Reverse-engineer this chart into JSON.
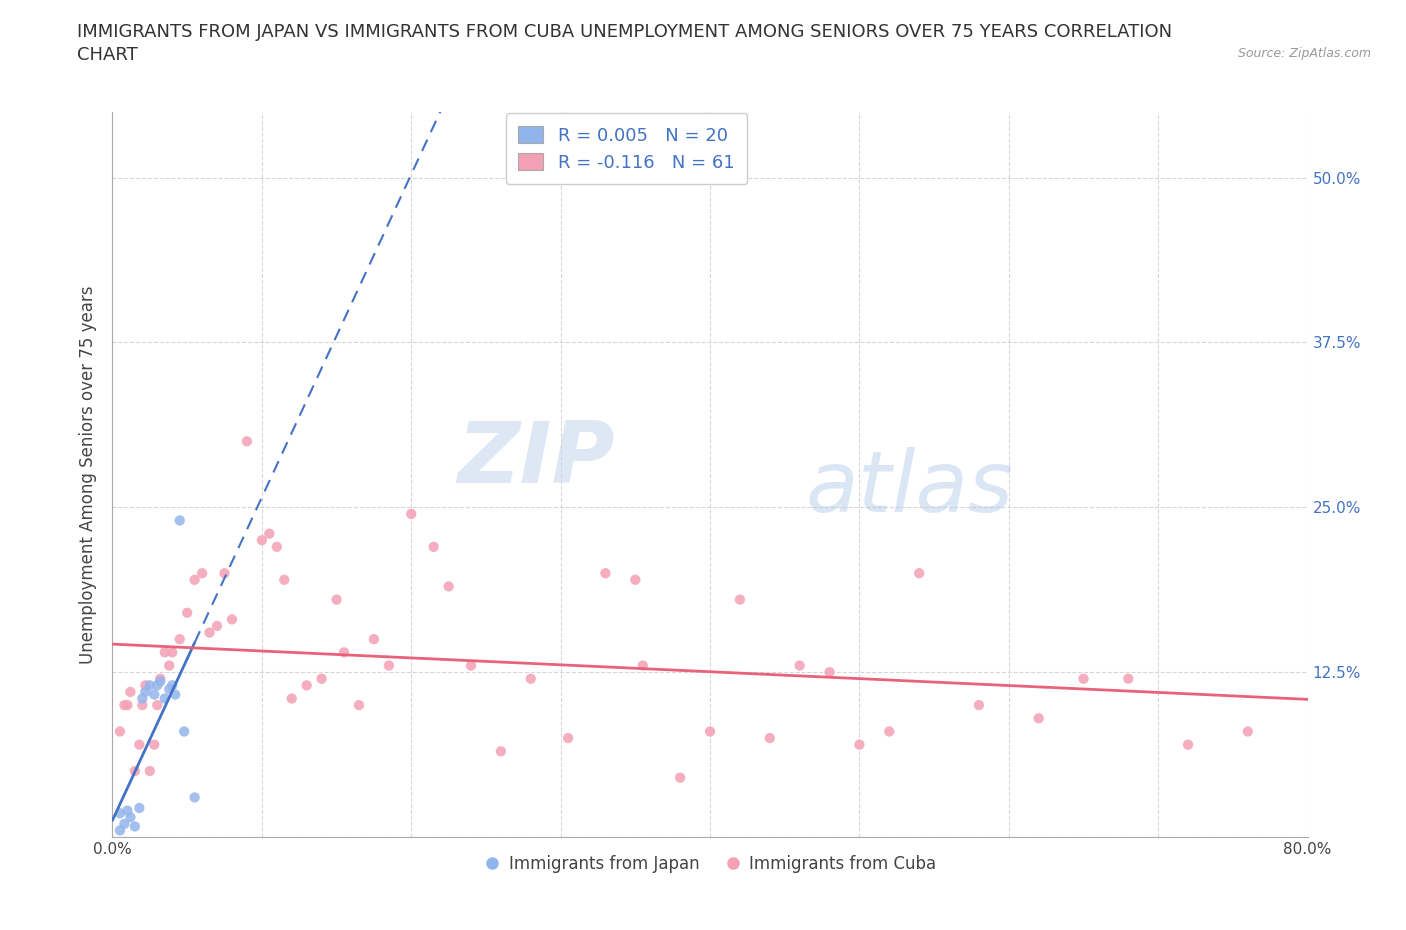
{
  "title_line1": "IMMIGRANTS FROM JAPAN VS IMMIGRANTS FROM CUBA UNEMPLOYMENT AMONG SENIORS OVER 75 YEARS CORRELATION",
  "title_line2": "CHART",
  "source_text": "Source: ZipAtlas.com",
  "ylabel": "Unemployment Among Seniors over 75 years",
  "xlim": [
    0.0,
    0.8
  ],
  "ylim": [
    0.0,
    0.55
  ],
  "xticks": [
    0.0,
    0.1,
    0.2,
    0.3,
    0.4,
    0.5,
    0.6,
    0.7,
    0.8
  ],
  "xticklabels": [
    "0.0%",
    "",
    "",
    "",
    "",
    "",
    "",
    "",
    "80.0%"
  ],
  "yticks": [
    0.0,
    0.125,
    0.25,
    0.375,
    0.5
  ],
  "yticklabels": [
    "",
    "12.5%",
    "25.0%",
    "37.5%",
    "50.0%"
  ],
  "japan_color": "#92b4ec",
  "cuba_color": "#f4a0b5",
  "japan_line_color": "#4472c4",
  "cuba_line_color": "#e8627a",
  "japan_R": 0.005,
  "japan_N": 20,
  "cuba_R": -0.116,
  "cuba_N": 61,
  "watermark_zip": "ZIP",
  "watermark_atlas": "atlas",
  "legend_japan": "Immigrants from Japan",
  "legend_cuba": "Immigrants from Cuba",
  "japan_x": [
    0.005,
    0.005,
    0.008,
    0.01,
    0.012,
    0.015,
    0.018,
    0.02,
    0.022,
    0.025,
    0.028,
    0.03,
    0.032,
    0.035,
    0.038,
    0.04,
    0.042,
    0.045,
    0.048,
    0.055
  ],
  "japan_y": [
    0.005,
    0.018,
    0.01,
    0.02,
    0.015,
    0.008,
    0.022,
    0.105,
    0.11,
    0.115,
    0.108,
    0.115,
    0.118,
    0.105,
    0.112,
    0.115,
    0.108,
    0.24,
    0.08,
    0.03
  ],
  "cuba_x": [
    0.005,
    0.008,
    0.01,
    0.012,
    0.015,
    0.018,
    0.02,
    0.022,
    0.025,
    0.028,
    0.03,
    0.032,
    0.035,
    0.038,
    0.04,
    0.045,
    0.05,
    0.055,
    0.06,
    0.065,
    0.07,
    0.075,
    0.08,
    0.09,
    0.1,
    0.105,
    0.11,
    0.115,
    0.12,
    0.13,
    0.14,
    0.15,
    0.155,
    0.165,
    0.175,
    0.185,
    0.2,
    0.215,
    0.225,
    0.24,
    0.26,
    0.28,
    0.305,
    0.33,
    0.35,
    0.355,
    0.38,
    0.4,
    0.42,
    0.44,
    0.46,
    0.48,
    0.5,
    0.52,
    0.54,
    0.58,
    0.62,
    0.65,
    0.68,
    0.72,
    0.76
  ],
  "cuba_y": [
    0.08,
    0.1,
    0.1,
    0.11,
    0.05,
    0.07,
    0.1,
    0.115,
    0.05,
    0.07,
    0.1,
    0.12,
    0.14,
    0.13,
    0.14,
    0.15,
    0.17,
    0.195,
    0.2,
    0.155,
    0.16,
    0.2,
    0.165,
    0.3,
    0.225,
    0.23,
    0.22,
    0.195,
    0.105,
    0.115,
    0.12,
    0.18,
    0.14,
    0.1,
    0.15,
    0.13,
    0.245,
    0.22,
    0.19,
    0.13,
    0.065,
    0.12,
    0.075,
    0.2,
    0.195,
    0.13,
    0.045,
    0.08,
    0.18,
    0.075,
    0.13,
    0.125,
    0.07,
    0.08,
    0.2,
    0.1,
    0.09,
    0.12,
    0.12,
    0.07,
    0.08
  ],
  "background_color": "#ffffff",
  "grid_color": "#cccccc",
  "title_fontsize": 13,
  "axis_label_fontsize": 12,
  "tick_fontsize": 11,
  "scatter_size": 55
}
